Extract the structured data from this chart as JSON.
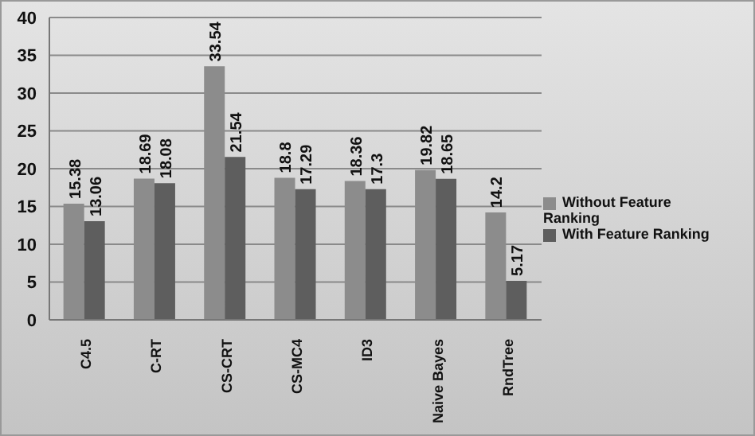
{
  "chart_data": {
    "type": "bar",
    "categories": [
      "C4.5",
      "C-RT",
      "CS-CRT",
      "CS-MC4",
      "ID3",
      "Naive Bayes",
      "RndTree"
    ],
    "series": [
      {
        "name": "Without Feature Ranking",
        "color": "#8c8c8c",
        "values": [
          15.38,
          18.69,
          33.54,
          18.8,
          18.36,
          19.82,
          14.2
        ]
      },
      {
        "name": "With Feature Ranking",
        "color": "#5e5e5e",
        "values": [
          13.06,
          18.08,
          21.54,
          17.29,
          17.3,
          18.65,
          5.17
        ]
      }
    ],
    "ylim": [
      0,
      40
    ],
    "yticks": [
      0,
      5,
      10,
      15,
      20,
      25,
      30,
      35,
      40
    ],
    "grid": "y",
    "legend": "right",
    "data_labels": true
  }
}
